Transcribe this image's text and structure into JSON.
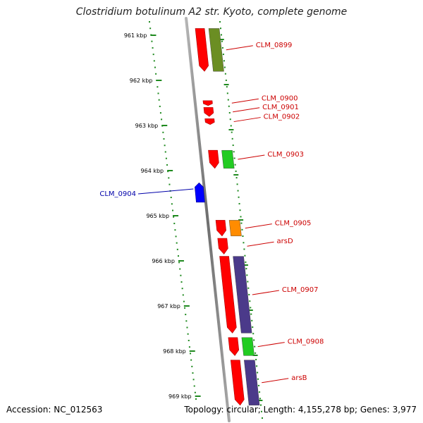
{
  "title": "Clostridium botulinum A2 str. Kyoto, complete genome",
  "footer": {
    "accession": "Accession: NC_012563",
    "topology": "Topology: circular; Length: 4,155,278 bp; Genes: 3,977"
  },
  "colors": {
    "axis": "#8a8a8a",
    "ticks": "#1f8a1f",
    "cds": "#ff0000",
    "forward_label": "#cc0000",
    "reverse_gene": "#0000ff",
    "reverse_label": "#0000aa",
    "olive_feature": "#6b8e23",
    "green_feature": "#22cc22",
    "orange_feature": "#ff8c00",
    "purple_feature": "#4b3a8a"
  },
  "ruler": {
    "unit": "kbp",
    "ticks": [
      "961 kbp",
      "962 kbp",
      "963 kbp",
      "964 kbp",
      "965 kbp",
      "966 kbp",
      "967 kbp",
      "968 kbp",
      "969 kbp"
    ]
  },
  "genes": [
    {
      "label": "CLM_0899",
      "strand": "forward",
      "start": 960.85,
      "end": 961.8,
      "partner": "olive"
    },
    {
      "label": "CLM_0900",
      "strand": "forward",
      "start": 962.45,
      "end": 962.55,
      "partner": null
    },
    {
      "label": "CLM_0901",
      "strand": "forward",
      "start": 962.6,
      "end": 962.8,
      "partner": null
    },
    {
      "label": "CLM_0902",
      "strand": "forward",
      "start": 962.85,
      "end": 962.98,
      "partner": null
    },
    {
      "label": "CLM_0903",
      "strand": "forward",
      "start": 963.55,
      "end": 963.95,
      "partner": "green"
    },
    {
      "label": "CLM_0904",
      "strand": "reverse",
      "start": 964.27,
      "end": 964.7,
      "partner": null
    },
    {
      "label": "CLM_0905",
      "strand": "forward",
      "start": 965.1,
      "end": 965.45,
      "partner": "orange"
    },
    {
      "label": "arsD",
      "strand": "forward",
      "start": 965.5,
      "end": 965.85,
      "partner": null
    },
    {
      "label": "CLM_0907",
      "strand": "forward",
      "start": 965.9,
      "end": 967.6,
      "partner": "purple"
    },
    {
      "label": "CLM_0908",
      "strand": "forward",
      "start": 967.7,
      "end": 968.1,
      "partner": "green"
    },
    {
      "label": "arsB",
      "strand": "forward",
      "start": 968.2,
      "end": 969.2,
      "partner": "purple"
    }
  ]
}
